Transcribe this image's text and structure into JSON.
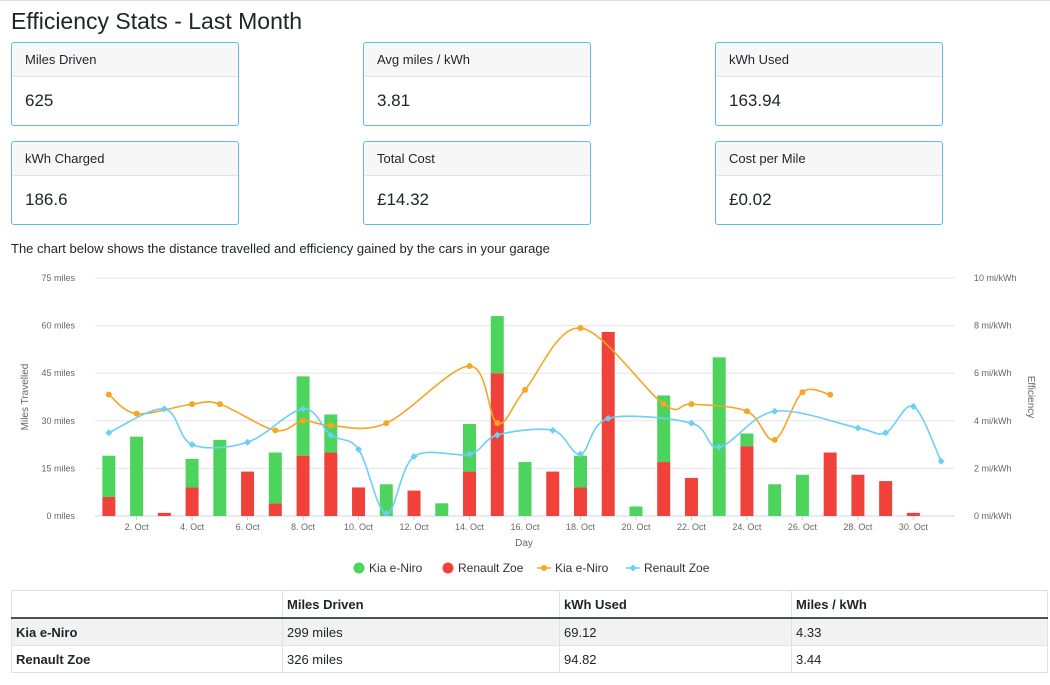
{
  "page": {
    "title": "Efficiency Stats - Last Month",
    "intro": "The chart below shows the distance travelled and efficiency gained by the cars in your garage"
  },
  "cards": [
    {
      "label": "Miles Driven",
      "value": "625"
    },
    {
      "label": "Avg miles / kWh",
      "value": "3.81"
    },
    {
      "label": "kWh Used",
      "value": "163.94"
    },
    {
      "label": "kWh Charged",
      "value": "186.6"
    },
    {
      "label": "Total Cost",
      "value": "£14.32"
    },
    {
      "label": "Cost per Mile",
      "value": "£0.02"
    }
  ],
  "chart_data": {
    "type": "bar+line",
    "xlabel": "Day",
    "ylabel_left": "Miles Travelled",
    "ylabel_right": "Efficiency",
    "y_left": {
      "min": 0,
      "max": 75,
      "ticks": [
        "0 miles",
        "15 miles",
        "30 miles",
        "45 miles",
        "60 miles",
        "75 miles"
      ]
    },
    "y_right": {
      "min": 0,
      "max": 10,
      "ticks": [
        "0 mi/kWh",
        "2 mi/kWh",
        "4 mi/kWh",
        "6 mi/kWh",
        "8 mi/kWh",
        "10 mi/kWh"
      ]
    },
    "days": [
      1,
      2,
      3,
      4,
      5,
      6,
      7,
      8,
      9,
      10,
      11,
      12,
      13,
      14,
      15,
      16,
      17,
      18,
      19,
      20,
      21,
      22,
      23,
      24,
      25,
      26,
      27,
      28,
      29,
      30,
      31
    ],
    "x_tick_labels": [
      "2. Oct",
      "4. Oct",
      "6. Oct",
      "8. Oct",
      "10. Oct",
      "12. Oct",
      "14. Oct",
      "16. Oct",
      "18. Oct",
      "20. Oct",
      "22. Oct",
      "24. Oct",
      "26. Oct",
      "28. Oct",
      "30. Oct"
    ],
    "grid": true,
    "legend_position": "bottom-center",
    "colors": {
      "kia_bar": "#4cd45c",
      "zoe_bar": "#f0423a",
      "kia_line": "#f5a623",
      "zoe_line": "#6ccff6"
    },
    "stacked_bars": [
      {
        "name": "Kia e-Niro",
        "values": [
          13,
          25,
          0,
          9,
          24,
          0,
          16,
          25,
          12,
          0,
          10,
          0,
          4,
          15,
          18,
          17,
          0,
          10,
          0,
          3,
          21,
          0,
          50,
          4,
          10,
          13,
          0,
          0,
          0,
          0,
          0
        ]
      },
      {
        "name": "Renault Zoe",
        "values": [
          6,
          0,
          1,
          9,
          0,
          14,
          4,
          19,
          20,
          9,
          0,
          8,
          0,
          14,
          45,
          0,
          14,
          9,
          58,
          0,
          17,
          12,
          0,
          22,
          0,
          0,
          20,
          13,
          11,
          1,
          0
        ]
      }
    ],
    "lines": [
      {
        "name": "Kia e-Niro",
        "axis": "right",
        "values": [
          5.1,
          4.3,
          null,
          4.7,
          4.7,
          null,
          3.6,
          4.0,
          3.8,
          null,
          3.9,
          null,
          null,
          6.3,
          3.9,
          5.3,
          null,
          7.9,
          null,
          null,
          4.7,
          4.7,
          null,
          4.4,
          3.2,
          5.2,
          5.1,
          null,
          null,
          null,
          null
        ]
      },
      {
        "name": "Renault Zoe",
        "axis": "right",
        "values": [
          3.5,
          null,
          4.5,
          3.0,
          null,
          3.1,
          null,
          4.5,
          3.4,
          2.8,
          0.1,
          2.5,
          null,
          2.6,
          3.4,
          null,
          3.6,
          2.6,
          4.1,
          null,
          null,
          3.9,
          2.9,
          null,
          4.4,
          null,
          null,
          3.7,
          3.5,
          4.6,
          2.3
        ]
      }
    ]
  },
  "legend": [
    {
      "label": "Kia e-Niro",
      "kind": "bar-dot",
      "color": "#4cd45c"
    },
    {
      "label": "Renault Zoe",
      "kind": "bar-dot",
      "color": "#f0423a"
    },
    {
      "label": "Kia e-Niro",
      "kind": "line",
      "color": "#f5a623"
    },
    {
      "label": "Renault Zoe",
      "kind": "line",
      "color": "#6ccff6"
    }
  ],
  "table": {
    "headers": [
      "",
      "Miles Driven",
      "kWh Used",
      "Miles / kWh"
    ],
    "rows": [
      {
        "car": "Kia e-Niro",
        "miles": "299 miles",
        "kwh": "69.12",
        "mpk": "4.33"
      },
      {
        "car": "Renault Zoe",
        "miles": "326 miles",
        "kwh": "94.82",
        "mpk": "3.44"
      }
    ]
  }
}
